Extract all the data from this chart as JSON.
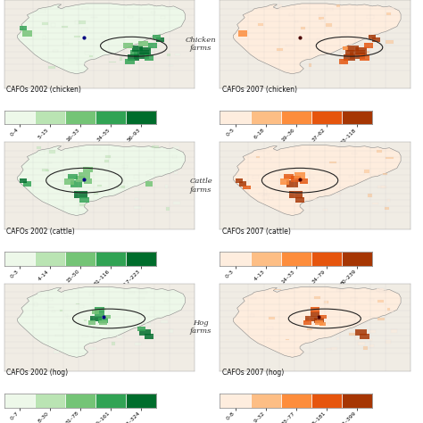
{
  "background_color": "#f5f0eb",
  "panels": [
    {
      "label": "CAFOs 2002 (chicken)",
      "side_label": "Chicken\nfarms",
      "ticks": [
        "0–4",
        "5–15",
        "16–33",
        "34–55",
        "56–93"
      ],
      "colors_left": [
        "#edf8e9",
        "#bae4b3",
        "#74c476",
        "#31a354",
        "#006d2c"
      ]
    },
    {
      "label": "CAFOs 2007 (chicken)",
      "side_label": "",
      "ticks": [
        "0–5",
        "6–18",
        "19–36",
        "37–62",
        "63–118"
      ],
      "colors_right": [
        "#feedde",
        "#fdbe85",
        "#fd8d3c",
        "#e6550d",
        "#a63603"
      ]
    },
    {
      "label": "CAFOs 2002 (cattle)",
      "side_label": "Cattle\nfarms",
      "ticks": [
        "0–3",
        "4–14",
        "15–50",
        "51–116",
        "117–223"
      ],
      "colors_left": [
        "#edf8e9",
        "#bae4b3",
        "#74c476",
        "#31a354",
        "#006d2c"
      ]
    },
    {
      "label": "CAFOs 2007 (cattle)",
      "side_label": "",
      "ticks": [
        "0–3",
        "4–13",
        "14–33",
        "34–79",
        "80–239"
      ],
      "colors_right": [
        "#feedde",
        "#fdbe85",
        "#fd8d3c",
        "#e6550d",
        "#a63603"
      ]
    },
    {
      "label": "CAFOs 2002 (hog)",
      "side_label": "Hog\nfarms",
      "ticks": [
        "0–7",
        "8–30",
        "31–78",
        "79–161",
        "162–324"
      ],
      "colors_left": [
        "#edf8e9",
        "#bae4b3",
        "#74c476",
        "#31a354",
        "#006d2c"
      ]
    },
    {
      "label": "CAFOs 2007 (hog)",
      "side_label": "",
      "ticks": [
        "0–8",
        "9–32",
        "33–77",
        "78–181",
        "182–399"
      ],
      "colors_right": [
        "#feedde",
        "#fdbe85",
        "#fd8d3c",
        "#e6550d",
        "#a63603"
      ]
    }
  ]
}
